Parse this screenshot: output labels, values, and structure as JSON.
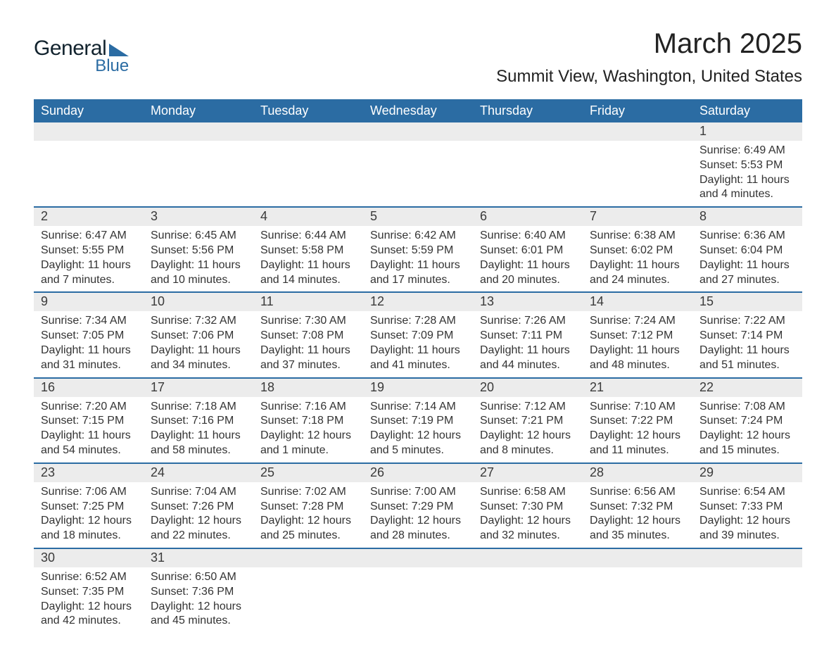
{
  "logo": {
    "text1": "General",
    "text2": "Blue",
    "brand_color": "#2b6ca3",
    "text1_color": "#12232e"
  },
  "header": {
    "month_title": "March 2025",
    "location": "Summit View, Washington, United States"
  },
  "colors": {
    "header_bg": "#2b6ca3",
    "header_text": "#ffffff",
    "daynum_bg": "#ececec",
    "row_divider": "#2b6ca3",
    "body_text": "#333333",
    "page_bg": "#ffffff"
  },
  "typography": {
    "month_title_size": 40,
    "location_size": 24,
    "weekday_size": 18,
    "daynum_size": 18,
    "body_size": 16
  },
  "weekdays": [
    "Sunday",
    "Monday",
    "Tuesday",
    "Wednesday",
    "Thursday",
    "Friday",
    "Saturday"
  ],
  "weeks": [
    [
      null,
      null,
      null,
      null,
      null,
      null,
      {
        "day": "1",
        "sunrise": "Sunrise: 6:49 AM",
        "sunset": "Sunset: 5:53 PM",
        "daylight": "Daylight: 11 hours and 4 minutes."
      }
    ],
    [
      {
        "day": "2",
        "sunrise": "Sunrise: 6:47 AM",
        "sunset": "Sunset: 5:55 PM",
        "daylight": "Daylight: 11 hours and 7 minutes."
      },
      {
        "day": "3",
        "sunrise": "Sunrise: 6:45 AM",
        "sunset": "Sunset: 5:56 PM",
        "daylight": "Daylight: 11 hours and 10 minutes."
      },
      {
        "day": "4",
        "sunrise": "Sunrise: 6:44 AM",
        "sunset": "Sunset: 5:58 PM",
        "daylight": "Daylight: 11 hours and 14 minutes."
      },
      {
        "day": "5",
        "sunrise": "Sunrise: 6:42 AM",
        "sunset": "Sunset: 5:59 PM",
        "daylight": "Daylight: 11 hours and 17 minutes."
      },
      {
        "day": "6",
        "sunrise": "Sunrise: 6:40 AM",
        "sunset": "Sunset: 6:01 PM",
        "daylight": "Daylight: 11 hours and 20 minutes."
      },
      {
        "day": "7",
        "sunrise": "Sunrise: 6:38 AM",
        "sunset": "Sunset: 6:02 PM",
        "daylight": "Daylight: 11 hours and 24 minutes."
      },
      {
        "day": "8",
        "sunrise": "Sunrise: 6:36 AM",
        "sunset": "Sunset: 6:04 PM",
        "daylight": "Daylight: 11 hours and 27 minutes."
      }
    ],
    [
      {
        "day": "9",
        "sunrise": "Sunrise: 7:34 AM",
        "sunset": "Sunset: 7:05 PM",
        "daylight": "Daylight: 11 hours and 31 minutes."
      },
      {
        "day": "10",
        "sunrise": "Sunrise: 7:32 AM",
        "sunset": "Sunset: 7:06 PM",
        "daylight": "Daylight: 11 hours and 34 minutes."
      },
      {
        "day": "11",
        "sunrise": "Sunrise: 7:30 AM",
        "sunset": "Sunset: 7:08 PM",
        "daylight": "Daylight: 11 hours and 37 minutes."
      },
      {
        "day": "12",
        "sunrise": "Sunrise: 7:28 AM",
        "sunset": "Sunset: 7:09 PM",
        "daylight": "Daylight: 11 hours and 41 minutes."
      },
      {
        "day": "13",
        "sunrise": "Sunrise: 7:26 AM",
        "sunset": "Sunset: 7:11 PM",
        "daylight": "Daylight: 11 hours and 44 minutes."
      },
      {
        "day": "14",
        "sunrise": "Sunrise: 7:24 AM",
        "sunset": "Sunset: 7:12 PM",
        "daylight": "Daylight: 11 hours and 48 minutes."
      },
      {
        "day": "15",
        "sunrise": "Sunrise: 7:22 AM",
        "sunset": "Sunset: 7:14 PM",
        "daylight": "Daylight: 11 hours and 51 minutes."
      }
    ],
    [
      {
        "day": "16",
        "sunrise": "Sunrise: 7:20 AM",
        "sunset": "Sunset: 7:15 PM",
        "daylight": "Daylight: 11 hours and 54 minutes."
      },
      {
        "day": "17",
        "sunrise": "Sunrise: 7:18 AM",
        "sunset": "Sunset: 7:16 PM",
        "daylight": "Daylight: 11 hours and 58 minutes."
      },
      {
        "day": "18",
        "sunrise": "Sunrise: 7:16 AM",
        "sunset": "Sunset: 7:18 PM",
        "daylight": "Daylight: 12 hours and 1 minute."
      },
      {
        "day": "19",
        "sunrise": "Sunrise: 7:14 AM",
        "sunset": "Sunset: 7:19 PM",
        "daylight": "Daylight: 12 hours and 5 minutes."
      },
      {
        "day": "20",
        "sunrise": "Sunrise: 7:12 AM",
        "sunset": "Sunset: 7:21 PM",
        "daylight": "Daylight: 12 hours and 8 minutes."
      },
      {
        "day": "21",
        "sunrise": "Sunrise: 7:10 AM",
        "sunset": "Sunset: 7:22 PM",
        "daylight": "Daylight: 12 hours and 11 minutes."
      },
      {
        "day": "22",
        "sunrise": "Sunrise: 7:08 AM",
        "sunset": "Sunset: 7:24 PM",
        "daylight": "Daylight: 12 hours and 15 minutes."
      }
    ],
    [
      {
        "day": "23",
        "sunrise": "Sunrise: 7:06 AM",
        "sunset": "Sunset: 7:25 PM",
        "daylight": "Daylight: 12 hours and 18 minutes."
      },
      {
        "day": "24",
        "sunrise": "Sunrise: 7:04 AM",
        "sunset": "Sunset: 7:26 PM",
        "daylight": "Daylight: 12 hours and 22 minutes."
      },
      {
        "day": "25",
        "sunrise": "Sunrise: 7:02 AM",
        "sunset": "Sunset: 7:28 PM",
        "daylight": "Daylight: 12 hours and 25 minutes."
      },
      {
        "day": "26",
        "sunrise": "Sunrise: 7:00 AM",
        "sunset": "Sunset: 7:29 PM",
        "daylight": "Daylight: 12 hours and 28 minutes."
      },
      {
        "day": "27",
        "sunrise": "Sunrise: 6:58 AM",
        "sunset": "Sunset: 7:30 PM",
        "daylight": "Daylight: 12 hours and 32 minutes."
      },
      {
        "day": "28",
        "sunrise": "Sunrise: 6:56 AM",
        "sunset": "Sunset: 7:32 PM",
        "daylight": "Daylight: 12 hours and 35 minutes."
      },
      {
        "day": "29",
        "sunrise": "Sunrise: 6:54 AM",
        "sunset": "Sunset: 7:33 PM",
        "daylight": "Daylight: 12 hours and 39 minutes."
      }
    ],
    [
      {
        "day": "30",
        "sunrise": "Sunrise: 6:52 AM",
        "sunset": "Sunset: 7:35 PM",
        "daylight": "Daylight: 12 hours and 42 minutes."
      },
      {
        "day": "31",
        "sunrise": "Sunrise: 6:50 AM",
        "sunset": "Sunset: 7:36 PM",
        "daylight": "Daylight: 12 hours and 45 minutes."
      },
      null,
      null,
      null,
      null,
      null
    ]
  ]
}
